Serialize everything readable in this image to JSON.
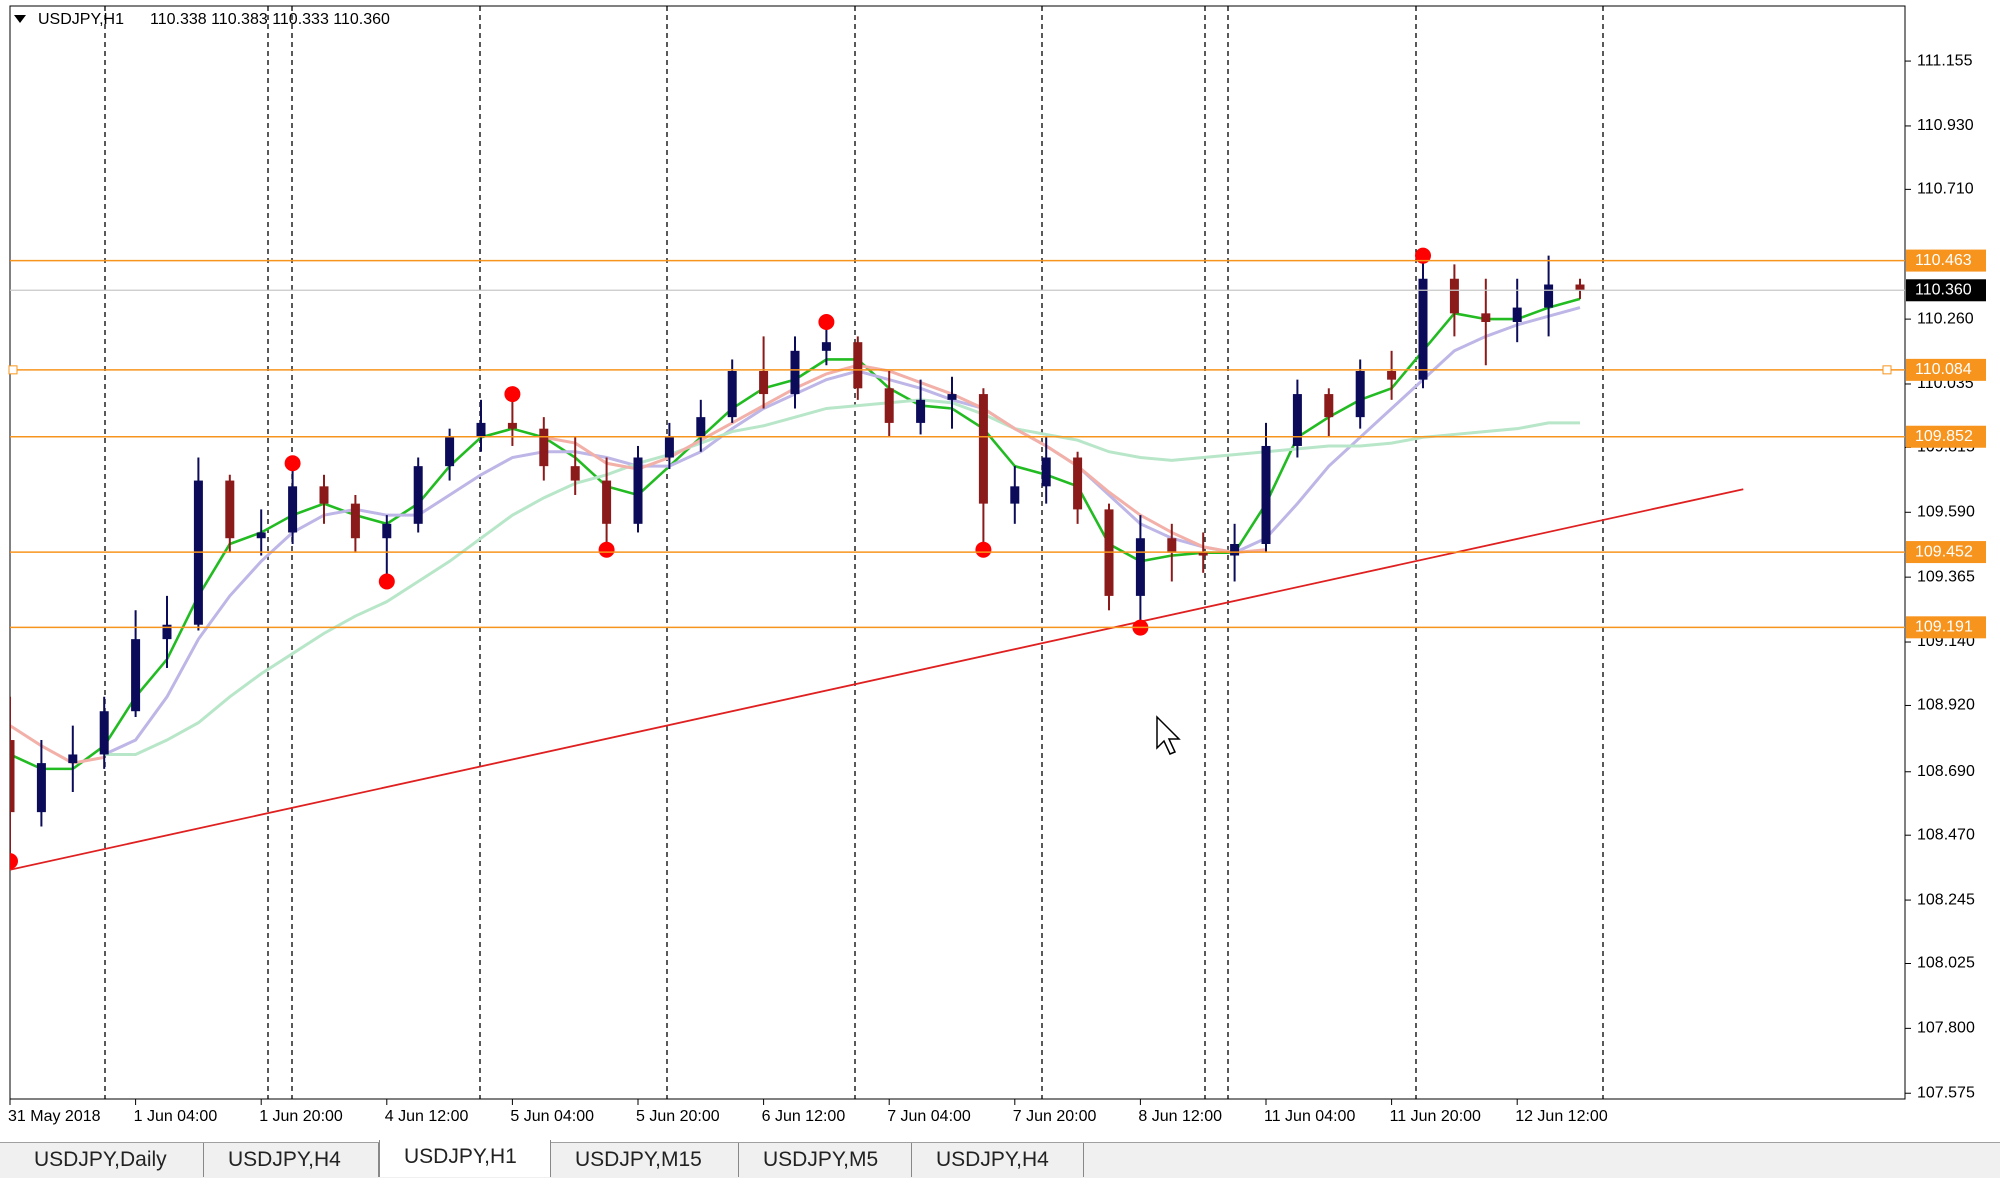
{
  "header": {
    "symbol": "USDJPY,H1",
    "quote": "110.338 110.383 110.333 110.360"
  },
  "tabs": [
    "USDJPY,Daily",
    "USDJPY,H4",
    "USDJPY,H1",
    "USDJPY,M15",
    "USDJPY,M5",
    "USDJPY,H4"
  ],
  "chart_data": {
    "type": "candlestick",
    "categories": [
      "31 May 2018",
      null,
      null,
      null,
      "1 Jun 04:00",
      null,
      null,
      null,
      "1 Jun 20:00",
      null,
      null,
      null,
      "4 Jun 12:00",
      null,
      null,
      null,
      "5 Jun 04:00",
      null,
      null,
      null,
      "5 Jun 20:00",
      null,
      null,
      null,
      "6 Jun 12:00",
      null,
      null,
      null,
      "7 Jun 04:00",
      null,
      null,
      null,
      "7 Jun 20:00",
      null,
      null,
      null,
      "8 Jun 12:00",
      null,
      null,
      null,
      "11 Jun 04:00",
      null,
      null,
      null,
      "11 Jun 20:00",
      null,
      null,
      null,
      "12 Jun 12:00",
      null,
      null
    ],
    "candles": {
      "up_color": "#0b0b5a",
      "down_color": "#8b1a1a",
      "open": [
        108.8,
        108.55,
        108.72,
        108.75,
        108.9,
        109.15,
        109.2,
        109.7,
        109.5,
        109.52,
        109.68,
        109.62,
        109.5,
        109.55,
        109.75,
        109.85,
        109.9,
        109.88,
        109.75,
        109.7,
        109.55,
        109.78,
        109.85,
        109.92,
        110.08,
        110.0,
        110.15,
        110.18,
        110.02,
        109.9,
        109.98,
        110.0,
        109.62,
        109.68,
        109.78,
        109.6,
        109.3,
        109.5,
        109.45,
        109.44,
        109.48,
        109.82,
        110.0,
        109.92,
        110.08,
        110.05,
        110.4,
        110.28,
        110.25,
        110.3,
        110.38
      ],
      "high": [
        108.95,
        108.8,
        108.85,
        108.95,
        109.25,
        109.3,
        109.78,
        109.72,
        109.6,
        109.76,
        109.72,
        109.65,
        109.58,
        109.78,
        109.88,
        109.98,
        110.0,
        109.92,
        109.85,
        109.78,
        109.82,
        109.9,
        109.98,
        110.12,
        110.2,
        110.2,
        110.25,
        110.2,
        110.08,
        110.05,
        110.06,
        110.02,
        109.75,
        109.85,
        109.8,
        109.62,
        109.58,
        109.55,
        109.52,
        109.55,
        109.9,
        110.05,
        110.02,
        110.12,
        110.15,
        110.48,
        110.45,
        110.4,
        110.4,
        110.48,
        110.4
      ],
      "low": [
        108.38,
        108.5,
        108.62,
        108.7,
        108.88,
        109.05,
        109.18,
        109.45,
        109.44,
        109.48,
        109.55,
        109.45,
        109.35,
        109.52,
        109.7,
        109.8,
        109.82,
        109.7,
        109.65,
        109.46,
        109.52,
        109.74,
        109.8,
        109.9,
        109.95,
        109.95,
        110.1,
        109.98,
        109.85,
        109.86,
        109.88,
        109.46,
        109.55,
        109.62,
        109.55,
        109.25,
        109.19,
        109.35,
        109.38,
        109.35,
        109.45,
        109.78,
        109.85,
        109.88,
        109.98,
        110.02,
        110.2,
        110.1,
        110.18,
        110.2,
        110.33
      ],
      "close": [
        108.55,
        108.72,
        108.75,
        108.9,
        109.15,
        109.2,
        109.7,
        109.5,
        109.52,
        109.68,
        109.62,
        109.5,
        109.55,
        109.75,
        109.85,
        109.9,
        109.88,
        109.75,
        109.7,
        109.55,
        109.78,
        109.85,
        109.92,
        110.08,
        110.0,
        110.15,
        110.18,
        110.02,
        109.9,
        109.98,
        110.0,
        109.62,
        109.68,
        109.78,
        109.6,
        109.3,
        109.5,
        109.45,
        109.44,
        109.48,
        109.82,
        110.0,
        109.92,
        110.08,
        110.05,
        110.4,
        110.28,
        110.25,
        110.3,
        110.38,
        110.36
      ]
    },
    "series": [
      {
        "color": "#22bb22",
        "values": [
          108.75,
          108.7,
          108.7,
          108.78,
          108.95,
          109.08,
          109.3,
          109.48,
          109.52,
          109.58,
          109.62,
          109.58,
          109.55,
          109.62,
          109.75,
          109.85,
          109.88,
          109.85,
          109.78,
          109.68,
          109.65,
          109.75,
          109.85,
          109.95,
          110.02,
          110.05,
          110.12,
          110.12,
          110.02,
          109.96,
          109.95,
          109.88,
          109.75,
          109.72,
          109.68,
          109.48,
          109.42,
          109.44,
          109.45,
          109.45,
          109.62,
          109.85,
          109.92,
          109.98,
          110.02,
          110.15,
          110.28,
          110.26,
          110.26,
          110.3,
          110.33
        ]
      },
      {
        "color": "#bdb6e6",
        "values": [
          null,
          null,
          null,
          108.75,
          108.8,
          108.95,
          109.15,
          109.3,
          109.42,
          109.52,
          109.58,
          109.6,
          109.58,
          109.58,
          109.65,
          109.72,
          109.78,
          109.8,
          109.8,
          109.78,
          109.75,
          109.75,
          109.8,
          109.88,
          109.95,
          110.0,
          110.05,
          110.08,
          110.05,
          110.02,
          109.98,
          109.95,
          109.88,
          109.82,
          109.75,
          109.65,
          109.55,
          109.5,
          109.47,
          109.45,
          109.5,
          109.62,
          109.75,
          109.85,
          109.95,
          110.05,
          110.15,
          110.2,
          110.24,
          110.27,
          110.3
        ]
      },
      {
        "color": "#b8e6c8",
        "values": [
          null,
          null,
          null,
          108.75,
          108.75,
          108.8,
          108.86,
          108.95,
          109.03,
          109.1,
          109.17,
          109.23,
          109.28,
          109.35,
          109.42,
          109.5,
          109.58,
          109.64,
          109.69,
          109.72,
          109.76,
          109.79,
          109.83,
          109.87,
          109.89,
          109.92,
          109.95,
          109.96,
          109.97,
          109.98,
          109.97,
          109.93,
          109.88,
          109.86,
          109.84,
          109.8,
          109.78,
          109.77,
          109.78,
          109.79,
          109.8,
          109.81,
          109.82,
          109.82,
          109.83,
          109.85,
          109.86,
          109.87,
          109.88,
          109.9,
          109.9
        ]
      },
      {
        "color": "#f2b0a8",
        "values": [
          108.85,
          108.78,
          108.72,
          108.74,
          null,
          null,
          null,
          null,
          null,
          null,
          null,
          null,
          null,
          null,
          null,
          null,
          null,
          109.85,
          109.83,
          109.76,
          109.74,
          109.78,
          109.84,
          109.9,
          109.96,
          110.02,
          110.07,
          110.1,
          110.08,
          110.04,
          110.0,
          109.95,
          109.88,
          109.82,
          109.75,
          109.66,
          109.58,
          109.52,
          109.47,
          109.45,
          109.46,
          null,
          null,
          null,
          null,
          null,
          null,
          null,
          null,
          null,
          null
        ]
      }
    ],
    "markers": {
      "color": "#ff0000",
      "x": [
        0,
        9,
        12,
        16,
        19,
        26,
        31,
        36,
        45
      ],
      "values": [
        108.38,
        109.76,
        109.35,
        110.0,
        109.46,
        110.25,
        109.46,
        109.19,
        110.48
      ]
    },
    "trendline": {
      "color": "#e02020",
      "x": [
        0,
        55.2
      ],
      "values": [
        108.35,
        109.67
      ]
    },
    "levels": {
      "color": "#f7941d",
      "values": [
        110.463,
        110.084,
        109.852,
        109.452,
        109.191
      ]
    },
    "current": {
      "value": 110.36,
      "label": "110.360"
    },
    "ylim": [
      107.555,
      111.346
    ],
    "yticks": [
      107.575,
      {
        "value": 107.8,
        "label": "107.800"
      },
      108.025,
      108.245,
      {
        "value": 108.47,
        "label": "108.470"
      },
      {
        "value": 108.69,
        "label": "108.690"
      },
      {
        "value": 108.92,
        "label": "108.920"
      },
      {
        "value": 109.14,
        "label": "109.140"
      },
      109.365,
      {
        "value": 109.59,
        "label": "109.590"
      },
      109.815,
      110.035,
      {
        "value": 110.26,
        "label": "110.260"
      },
      {
        "value": 110.71,
        "label": "110.710"
      },
      {
        "value": 110.93,
        "label": "110.930"
      },
      111.155
    ]
  }
}
